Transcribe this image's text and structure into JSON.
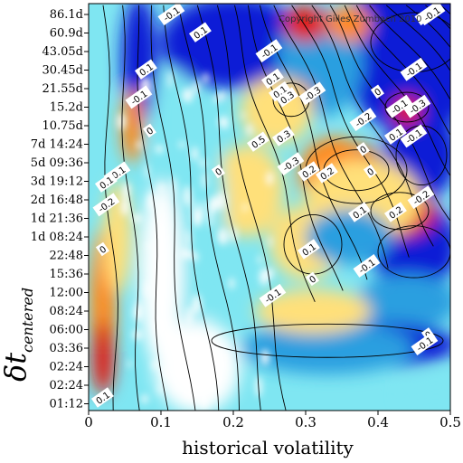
{
  "chart_data": {
    "type": "heatmap",
    "xlabel": "historical volatility",
    "ylabel": "δt",
    "ylabel_subscript": "centered",
    "xlim": [
      0,
      0.5
    ],
    "x_ticks": [
      "0",
      "0.1",
      "0.2",
      "0.3",
      "0.4",
      "0.5"
    ],
    "y_ticks": [
      "86.1d",
      "60.9d",
      "43.05d",
      "30.45d",
      "21.55d",
      "15.2d",
      "10.75d",
      "7d 14:24",
      "5d 09:36",
      "3d 19:12",
      "2d 16:48",
      "1d 21:36",
      "1d 08:24",
      "22:48",
      "15:36",
      "12:00",
      "08:24",
      "06:00",
      "03:36",
      "02:24",
      "02:24",
      "01:12"
    ],
    "copyright": "Copyright Gilles Zumbach 2010",
    "colormap": [
      "#ffffff",
      "#7fe6f2",
      "#2b9fe0",
      "#0a1fd6",
      "#ffe07a",
      "#ff8a1a",
      "#e01a10"
    ],
    "contour_labels": [
      {
        "text": "-0.1",
        "x": 0.115,
        "y_tick": 0
      },
      {
        "text": "0.1",
        "x": 0.155,
        "y_tick": 1
      },
      {
        "text": "-0.1",
        "x": 0.25,
        "y_tick": 2
      },
      {
        "text": "-0.3",
        "x": 0.47,
        "y_tick": 0
      },
      {
        "text": "-0.1",
        "x": 0.475,
        "y_tick": 0
      },
      {
        "text": "-0.1",
        "x": 0.45,
        "y_tick": 3
      },
      {
        "text": "0.1",
        "x": 0.08,
        "y_tick": 3
      },
      {
        "text": "-0.1",
        "x": 0.07,
        "y_tick": 4.5
      },
      {
        "text": "0.1",
        "x": 0.255,
        "y_tick": 3.5
      },
      {
        "text": "0.1",
        "x": 0.265,
        "y_tick": 4.2
      },
      {
        "text": "0.3",
        "x": 0.275,
        "y_tick": 4.5
      },
      {
        "text": "-0.3",
        "x": 0.31,
        "y_tick": 4.3
      },
      {
        "text": "0",
        "x": 0.4,
        "y_tick": 4.2
      },
      {
        "text": "-0.1",
        "x": 0.43,
        "y_tick": 5
      },
      {
        "text": "-0.3",
        "x": 0.455,
        "y_tick": 5
      },
      {
        "text": "-0.2",
        "x": 0.38,
        "y_tick": 5.7
      },
      {
        "text": "0",
        "x": 0.085,
        "y_tick": 6.3
      },
      {
        "text": "0.3",
        "x": 0.27,
        "y_tick": 6.6
      },
      {
        "text": "0.5",
        "x": 0.235,
        "y_tick": 6.9
      },
      {
        "text": "-0.1",
        "x": 0.45,
        "y_tick": 6.6
      },
      {
        "text": "0.1",
        "x": 0.425,
        "y_tick": 6.5
      },
      {
        "text": "0",
        "x": 0.38,
        "y_tick": 7.3
      },
      {
        "text": "-0.3",
        "x": 0.28,
        "y_tick": 8.1
      },
      {
        "text": "0.2",
        "x": 0.305,
        "y_tick": 8.5
      },
      {
        "text": "0.2",
        "x": 0.33,
        "y_tick": 8.6
      },
      {
        "text": "-0.1",
        "x": 0.04,
        "y_tick": 8.6
      },
      {
        "text": "0",
        "x": 0.18,
        "y_tick": 8.5
      },
      {
        "text": "0",
        "x": 0.39,
        "y_tick": 8.5
      },
      {
        "text": "0.1",
        "x": 0.025,
        "y_tick": 9.1
      },
      {
        "text": "-0.2",
        "x": 0.025,
        "y_tick": 10.3
      },
      {
        "text": "-0.2",
        "x": 0.46,
        "y_tick": 9.9
      },
      {
        "text": "0.1",
        "x": 0.375,
        "y_tick": 10.7
      },
      {
        "text": "0.2",
        "x": 0.425,
        "y_tick": 10.7
      },
      {
        "text": "0",
        "x": 0.02,
        "y_tick": 12.7
      },
      {
        "text": "0.1",
        "x": 0.305,
        "y_tick": 12.7
      },
      {
        "text": "-0.1",
        "x": 0.385,
        "y_tick": 13.6
      },
      {
        "text": "0",
        "x": 0.31,
        "y_tick": 14.3
      },
      {
        "text": "-0.1",
        "x": 0.255,
        "y_tick": 15.2
      },
      {
        "text": "0",
        "x": 0.47,
        "y_tick": 17.3
      },
      {
        "text": "-0.1",
        "x": 0.465,
        "y_tick": 17.8
      },
      {
        "text": "0.1",
        "x": 0.02,
        "y_tick": 20.7
      }
    ]
  }
}
